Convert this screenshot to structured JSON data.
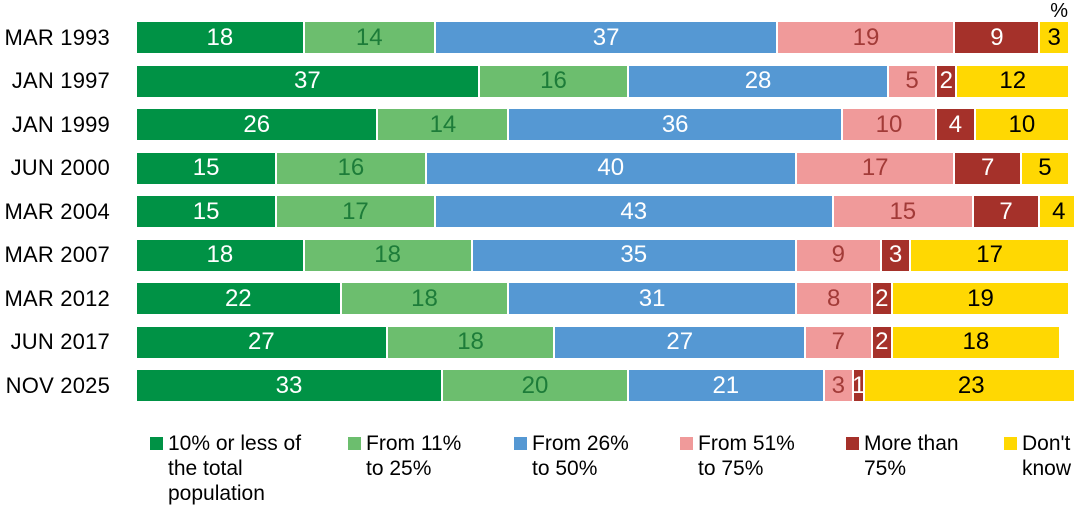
{
  "chart_data": {
    "type": "bar",
    "orientation": "horizontal-stacked",
    "title": "",
    "unit_label": "%",
    "xlim": [
      0,
      100
    ],
    "grid": false,
    "legend_position": "bottom",
    "categories": [
      "MAR 1993",
      "JAN 1997",
      "JAN 1999",
      "JUN 2000",
      "MAR 2004",
      "MAR 2007",
      "MAR 2012",
      "JUN 2017",
      "NOV 2025"
    ],
    "series": [
      {
        "name": "10% or less of the total population",
        "color": "#009245",
        "text_color": "#ffffff",
        "values": [
          18,
          37,
          26,
          15,
          15,
          18,
          22,
          27,
          33
        ]
      },
      {
        "name": "From 11% to 25%",
        "color": "#6cbe6e",
        "text_color": "#1d7c39",
        "values": [
          14,
          16,
          14,
          16,
          17,
          18,
          18,
          18,
          20
        ]
      },
      {
        "name": "From 26% to 50%",
        "color": "#5598d3",
        "text_color": "#ffffff",
        "values": [
          37,
          28,
          36,
          40,
          43,
          35,
          31,
          27,
          21
        ]
      },
      {
        "name": "From 51% to 75%",
        "color": "#f09a9a",
        "text_color": "#a23b38",
        "values": [
          19,
          5,
          10,
          17,
          15,
          9,
          8,
          7,
          3
        ]
      },
      {
        "name": "More than 75%",
        "color": "#a5312a",
        "text_color": "#ffffff",
        "values": [
          9,
          2,
          4,
          7,
          7,
          3,
          2,
          2,
          1
        ]
      },
      {
        "name": "Don't know",
        "color": "#ffd802",
        "text_color": "#000000",
        "values": [
          3,
          12,
          10,
          5,
          4,
          17,
          19,
          18,
          23
        ]
      }
    ]
  }
}
